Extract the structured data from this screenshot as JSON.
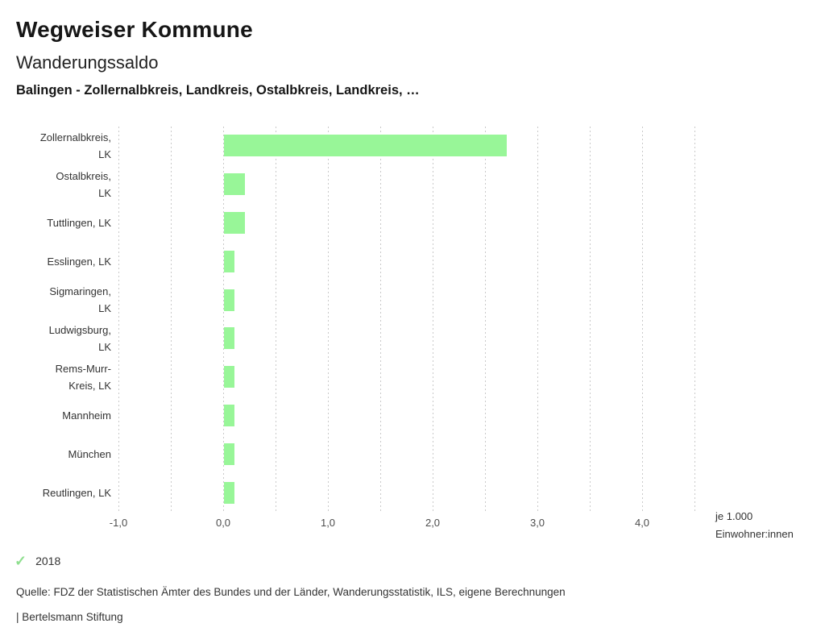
{
  "header": {
    "title": "Wegweiser Kommune",
    "subtitle": "Wanderungssaldo",
    "description": "Balingen - Zollernalbkreis, Landkreis, Ostalbkreis, Landkreis, …"
  },
  "chart_data": {
    "type": "bar",
    "orientation": "horizontal",
    "title": "Wanderungssaldo",
    "categories": [
      "Zollernalbkreis, LK",
      "Ostalbkreis, LK",
      "Tuttlingen, LK",
      "Esslingen, LK",
      "Sigmaringen, LK",
      "Ludwigsburg, LK",
      "Rems-Murr-Kreis, LK",
      "Mannheim",
      "München",
      "Reutlingen, LK"
    ],
    "category_display_lines": [
      [
        "Zollernalbkreis,",
        "LK"
      ],
      [
        "Ostalbkreis,",
        "LK"
      ],
      [
        "Tuttlingen, LK"
      ],
      [
        "Esslingen, LK"
      ],
      [
        "Sigmaringen,",
        "LK"
      ],
      [
        "Ludwigsburg,",
        "LK"
      ],
      [
        "Rems-Murr-",
        "Kreis, LK"
      ],
      [
        "Mannheim"
      ],
      [
        "München"
      ],
      [
        "Reutlingen, LK"
      ]
    ],
    "series": [
      {
        "name": "2018",
        "values": [
          2.7,
          0.2,
          0.2,
          0.1,
          0.1,
          0.1,
          0.1,
          0.1,
          0.1,
          0.1
        ]
      }
    ],
    "xlim": [
      -1.0,
      4.5
    ],
    "gridline_step": 0.5,
    "x_ticks": [
      -1.0,
      0.0,
      1.0,
      2.0,
      3.0,
      4.0
    ],
    "x_tick_labels": [
      "-1,0",
      "0,0",
      "1,0",
      "2,0",
      "3,0",
      "4,0"
    ],
    "unit_label_lines": [
      "je 1.000",
      "Einwohner:innen"
    ],
    "grid": true,
    "legend_position": "bottom-left",
    "colors": {
      "bar": "#98f698",
      "gridline": "#c9c9c9",
      "tick_text": "#4d4d4d",
      "label_text": "#333333"
    }
  },
  "legend": {
    "check_glyph": "✓",
    "check_color": "#8fdf8f",
    "label": "2018"
  },
  "footer": {
    "source": "Quelle: FDZ der Statistischen Ämter des Bundes und der Länder, Wanderungsstatistik, ILS, eigene Berechnungen",
    "byline": "| Bertelsmann Stiftung"
  }
}
